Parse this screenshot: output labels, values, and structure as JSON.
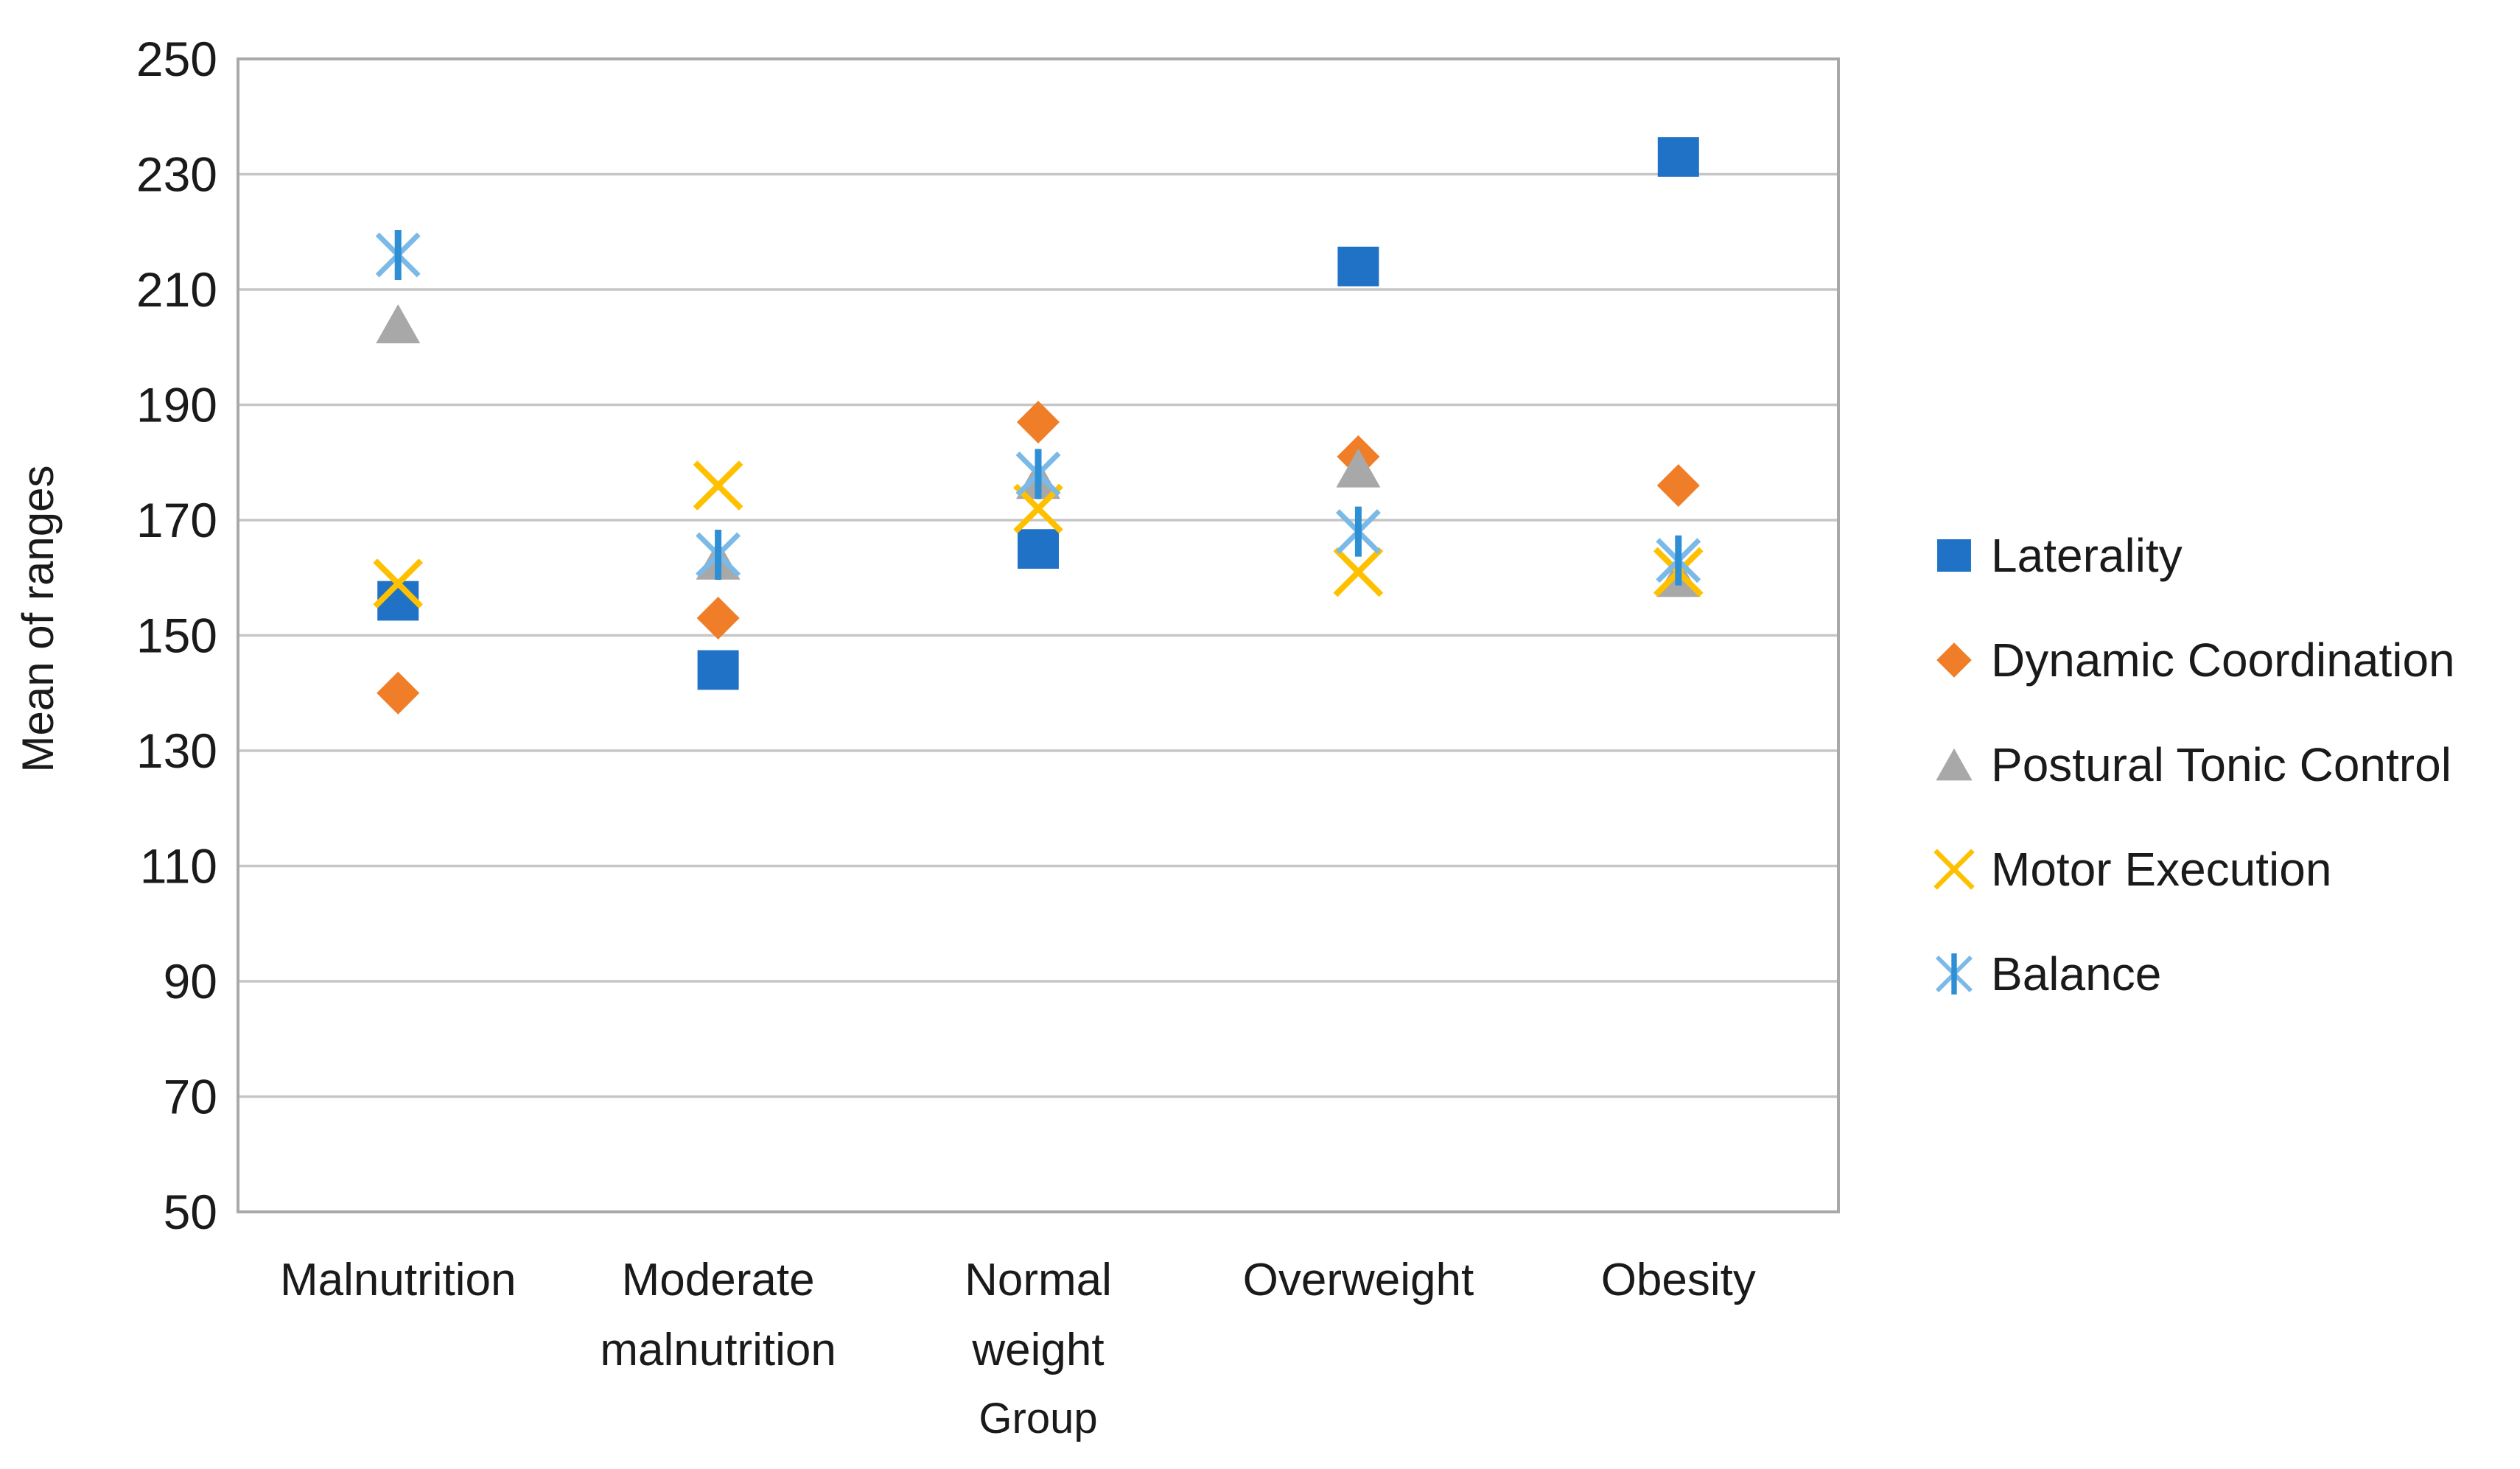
{
  "chart_data": {
    "type": "scatter",
    "title": "",
    "xlabel": "Group",
    "ylabel": "Mean of ranges",
    "categories": [
      "Malnutrition",
      "Moderate malnutrition",
      "Normal weight",
      "Overweight",
      "Obesity"
    ],
    "category_label_lines": [
      [
        "Malnutrition"
      ],
      [
        "Moderate",
        "malnutrition"
      ],
      [
        "Normal",
        "weight"
      ],
      [
        "Overweight"
      ],
      [
        "Obesity"
      ]
    ],
    "y_ticks": [
      50,
      70,
      90,
      110,
      130,
      150,
      170,
      190,
      210,
      230,
      250
    ],
    "ylim": [
      50,
      250
    ],
    "grid": "horizontal-only",
    "legend_position": "right-middle",
    "series": [
      {
        "name": "Laterality",
        "marker": "square",
        "color": "#1F72C6",
        "values": [
          156,
          144,
          165,
          214,
          233
        ]
      },
      {
        "name": "Dynamic Coordination",
        "marker": "diamond",
        "color": "#F07D27",
        "values": [
          140,
          153,
          187,
          181,
          176
        ]
      },
      {
        "name": "Postural Tonic Control",
        "marker": "triangle",
        "color": "#A8A8A8",
        "values": [
          204,
          163,
          177,
          179,
          160
        ]
      },
      {
        "name": "Motor Execution",
        "marker": "x-cross",
        "color": "#FFC000",
        "values": [
          159,
          176,
          172,
          161,
          161
        ]
      },
      {
        "name": "Balance",
        "marker": "star-6",
        "color": "#2E8FD5",
        "color_light": "#7BB9E7",
        "values": [
          216,
          164,
          178,
          168,
          163
        ]
      }
    ]
  },
  "styles": {
    "background": "#FFFFFF",
    "grid_color": "#C6C6C6",
    "plot_border_color": "#A9A9A9",
    "text_color": "#1A1A1A"
  }
}
